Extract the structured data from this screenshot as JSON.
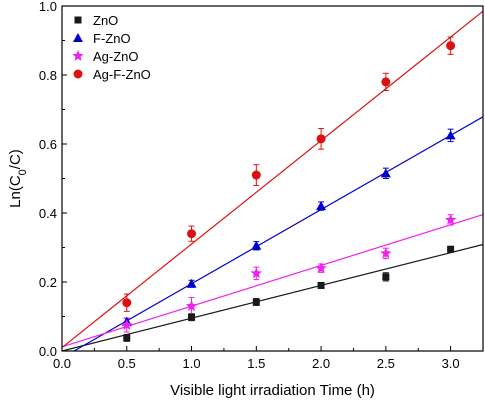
{
  "chart_data": {
    "type": "scatter",
    "xlabel": "Visible light irradiation Time (h)",
    "ylabel": "Ln(C₀/C)",
    "xlim": [
      0,
      3.25
    ],
    "ylim": [
      0,
      1.0
    ],
    "xticks": [
      0.0,
      0.5,
      1.0,
      1.5,
      2.0,
      2.5,
      3.0
    ],
    "xtick_labels": [
      "0.0",
      "0.5",
      "1.0",
      "1.5",
      "2.0",
      "2.5",
      "3.0"
    ],
    "yticks": [
      0.0,
      0.2,
      0.4,
      0.6,
      0.8,
      1.0
    ],
    "ytick_labels": [
      "0.0",
      "0.2",
      "0.4",
      "0.6",
      "0.8",
      "1.0"
    ],
    "grid": false,
    "legend_position": "top-left",
    "series": [
      {
        "name": "ZnO",
        "color": "#1a1a1a",
        "marker": "square",
        "x": [
          0.5,
          1.0,
          1.5,
          2.0,
          2.5,
          3.0
        ],
        "y": [
          0.038,
          0.098,
          0.142,
          0.19,
          0.215,
          0.295
        ],
        "err": [
          0.01,
          0.01,
          0.01,
          0.008,
          0.012,
          0.008
        ],
        "fit": {
          "intercept": 0.0,
          "slope": 0.095
        }
      },
      {
        "name": "F-ZnO",
        "color": "#0000cc",
        "marker": "triangle",
        "x": [
          0.5,
          1.0,
          1.5,
          2.0,
          2.5,
          3.0
        ],
        "y": [
          0.085,
          0.195,
          0.305,
          0.42,
          0.515,
          0.625
        ],
        "err": [
          0.01,
          0.01,
          0.012,
          0.012,
          0.015,
          0.018
        ],
        "fit": {
          "intercept": -0.02,
          "slope": 0.215
        }
      },
      {
        "name": "Ag-ZnO",
        "color": "#ee22ee",
        "marker": "star",
        "x": [
          0.5,
          1.0,
          1.5,
          2.0,
          2.5,
          3.0
        ],
        "y": [
          0.075,
          0.13,
          0.225,
          0.24,
          0.283,
          0.38
        ],
        "err": [
          0.02,
          0.025,
          0.018,
          0.012,
          0.015,
          0.015
        ],
        "fit": {
          "intercept": 0.012,
          "slope": 0.118
        }
      },
      {
        "name": "Ag-F-ZnO",
        "color": "#dd1111",
        "marker": "circle",
        "x": [
          0.5,
          1.0,
          1.5,
          2.0,
          2.5,
          3.0
        ],
        "y": [
          0.14,
          0.34,
          0.51,
          0.615,
          0.78,
          0.885
        ],
        "err": [
          0.025,
          0.022,
          0.03,
          0.03,
          0.025,
          0.025
        ],
        "fit": {
          "intercept": 0.01,
          "slope": 0.3
        }
      }
    ]
  }
}
